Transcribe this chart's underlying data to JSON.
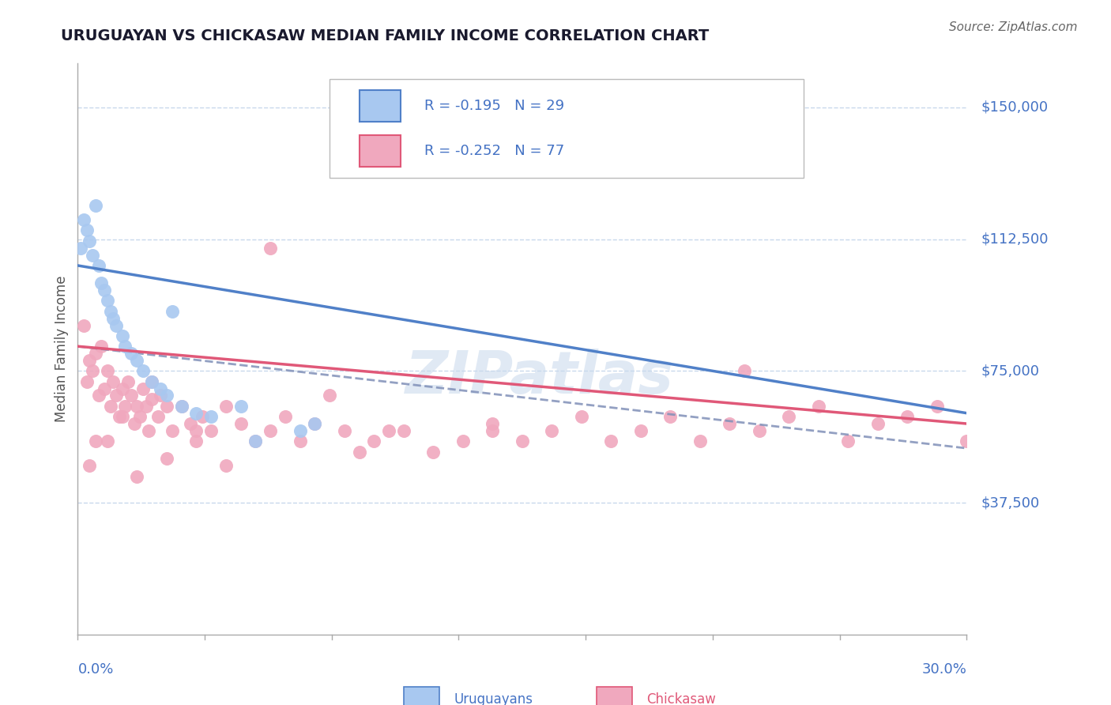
{
  "title": "URUGUAYAN VS CHICKASAW MEDIAN FAMILY INCOME CORRELATION CHART",
  "source": "Source: ZipAtlas.com",
  "ylabel": "Median Family Income",
  "xmin": 0.0,
  "xmax": 30.0,
  "ymin": 0,
  "ymax": 162500,
  "yticks": [
    37500,
    75000,
    112500,
    150000
  ],
  "ytick_labels": [
    "$37,500",
    "$75,000",
    "$112,500",
    "$150,000"
  ],
  "grid_color": "#c8d8ec",
  "uruguayan_color": "#a8c8f0",
  "chickasaw_color": "#f0a8be",
  "uruguayan_line_color": "#5080c8",
  "chickasaw_line_color": "#e05878",
  "dashed_line_color": "#8090b8",
  "legend_R_uruguayan": "R = -0.195",
  "legend_N_uruguayan": "N = 29",
  "legend_R_chickasaw": "R = -0.252",
  "legend_N_chickasaw": "N = 77",
  "legend_label_uruguayan": "Uruguayans",
  "legend_label_chickasaw": "Chickasaw",
  "watermark": "ZIPatlas",
  "title_color": "#1a1a2e",
  "source_color": "#666666",
  "axis_label_color": "#4472c4",
  "uruguayan_x": [
    0.1,
    0.2,
    0.3,
    0.4,
    0.5,
    0.6,
    0.7,
    0.8,
    0.9,
    1.0,
    1.1,
    1.2,
    1.3,
    1.5,
    1.6,
    1.8,
    2.0,
    2.2,
    2.5,
    2.8,
    3.0,
    3.5,
    4.0,
    4.5,
    5.5,
    6.0,
    7.5,
    3.2,
    8.0
  ],
  "uruguayan_y": [
    110000,
    118000,
    115000,
    112000,
    108000,
    122000,
    105000,
    100000,
    98000,
    95000,
    92000,
    90000,
    88000,
    85000,
    82000,
    80000,
    78000,
    75000,
    72000,
    70000,
    68000,
    65000,
    63000,
    62000,
    65000,
    55000,
    58000,
    92000,
    60000
  ],
  "chickasaw_x": [
    0.2,
    0.3,
    0.4,
    0.5,
    0.6,
    0.7,
    0.8,
    0.9,
    1.0,
    1.1,
    1.2,
    1.3,
    1.4,
    1.5,
    1.6,
    1.7,
    1.8,
    1.9,
    2.0,
    2.1,
    2.2,
    2.3,
    2.4,
    2.5,
    2.7,
    2.8,
    3.0,
    3.2,
    3.5,
    3.8,
    4.0,
    4.2,
    4.5,
    5.0,
    5.5,
    6.0,
    6.5,
    7.0,
    7.5,
    8.0,
    9.0,
    9.5,
    10.0,
    11.0,
    12.0,
    13.0,
    14.0,
    15.0,
    16.0,
    17.0,
    18.0,
    19.0,
    20.0,
    21.0,
    22.0,
    23.0,
    24.0,
    25.0,
    26.0,
    27.0,
    28.0,
    29.0,
    30.0,
    0.4,
    0.6,
    1.0,
    1.5,
    2.0,
    2.5,
    3.0,
    4.0,
    5.0,
    6.5,
    8.5,
    10.5,
    14.0,
    22.5
  ],
  "chickasaw_y": [
    88000,
    72000,
    78000,
    75000,
    80000,
    68000,
    82000,
    70000,
    75000,
    65000,
    72000,
    68000,
    62000,
    70000,
    65000,
    72000,
    68000,
    60000,
    65000,
    62000,
    70000,
    65000,
    58000,
    67000,
    62000,
    68000,
    65000,
    58000,
    65000,
    60000,
    55000,
    62000,
    58000,
    65000,
    60000,
    55000,
    58000,
    62000,
    55000,
    60000,
    58000,
    52000,
    55000,
    58000,
    52000,
    55000,
    60000,
    55000,
    58000,
    62000,
    55000,
    58000,
    62000,
    55000,
    60000,
    58000,
    62000,
    65000,
    55000,
    60000,
    62000,
    65000,
    55000,
    48000,
    55000,
    55000,
    62000,
    45000,
    72000,
    50000,
    58000,
    48000,
    110000,
    68000,
    58000,
    58000,
    75000
  ]
}
